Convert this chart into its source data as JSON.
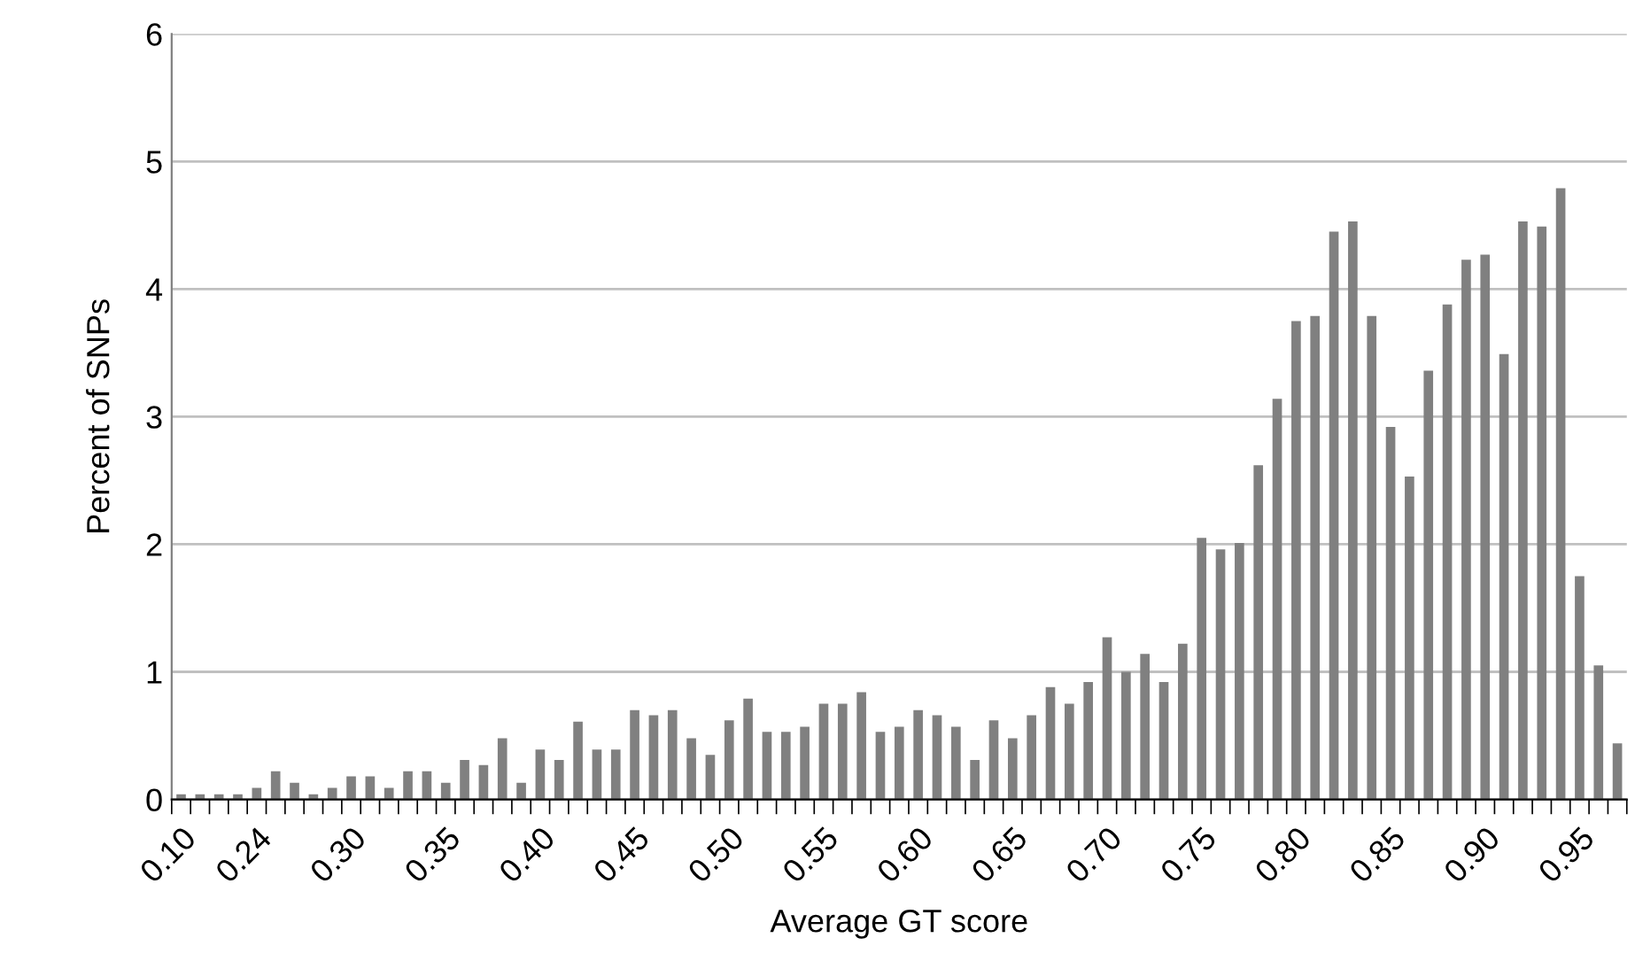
{
  "chart_data": {
    "type": "bar",
    "xlabel": "Average GT score",
    "ylabel": "Percent of SNPs",
    "categories": [
      "0.10",
      null,
      null,
      null,
      "0.24",
      null,
      null,
      null,
      null,
      "0.30",
      null,
      null,
      null,
      null,
      "0.35",
      null,
      null,
      null,
      null,
      "0.40",
      null,
      null,
      null,
      null,
      "0.45",
      null,
      null,
      null,
      null,
      "0.50",
      null,
      null,
      null,
      null,
      "0.55",
      null,
      null,
      null,
      null,
      "0.60",
      null,
      null,
      null,
      null,
      "0.65",
      null,
      null,
      null,
      null,
      "0.70",
      null,
      null,
      null,
      null,
      "0.75",
      null,
      null,
      null,
      null,
      "0.80",
      null,
      null,
      null,
      null,
      "0.85",
      null,
      null,
      null,
      null,
      "0.90",
      null,
      null,
      null,
      null,
      "0.95",
      null,
      null
    ],
    "values": [
      0.04,
      0.04,
      0.04,
      0.04,
      0.09,
      0.22,
      0.13,
      0.04,
      0.09,
      0.18,
      0.18,
      0.09,
      0.22,
      0.22,
      0.13,
      0.31,
      0.27,
      0.48,
      0.13,
      0.39,
      0.31,
      0.61,
      0.39,
      0.39,
      0.7,
      0.66,
      0.7,
      0.48,
      0.35,
      0.62,
      0.79,
      0.53,
      0.53,
      0.57,
      0.75,
      0.75,
      0.84,
      0.53,
      0.57,
      0.7,
      0.66,
      0.57,
      0.31,
      0.62,
      0.48,
      0.66,
      0.88,
      0.75,
      0.92,
      1.27,
      1.0,
      1.14,
      0.92,
      1.22,
      2.05,
      1.96,
      2.01,
      2.62,
      3.14,
      3.75,
      3.79,
      4.45,
      4.53,
      3.79,
      2.92,
      2.53,
      3.36,
      3.88,
      4.23,
      4.27,
      3.49,
      4.53,
      4.49,
      4.79,
      1.75,
      1.05,
      0.44
    ],
    "color": "#808080",
    "ylim": [
      0,
      6
    ],
    "yticks": [
      0,
      1,
      2,
      3,
      4,
      5,
      6
    ],
    "grid": "y",
    "legend": false
  }
}
